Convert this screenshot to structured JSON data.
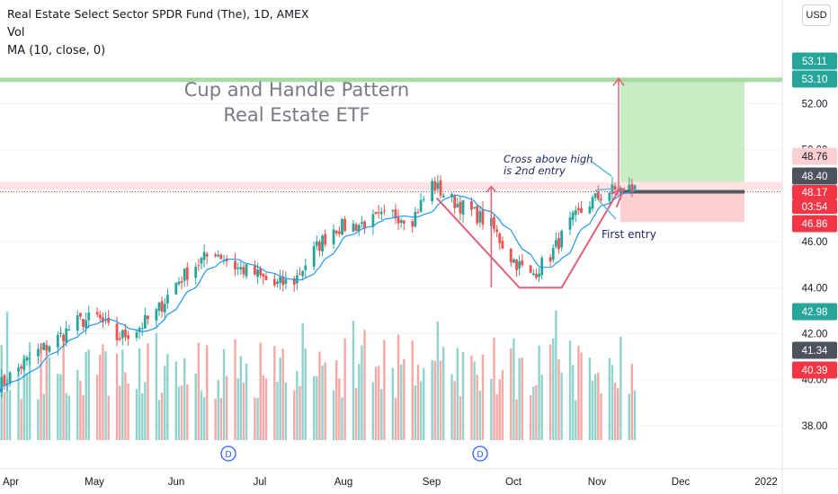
{
  "header": {
    "title": "Real Estate Select Sector SPDR Fund (The), 1D, AMEX",
    "vol_label": "Vol",
    "ma_label": "MA (10, close, 0)",
    "currency_button": "USD"
  },
  "annotations": {
    "title_line1": "Cup and Handle Pattern",
    "title_line2": "Real Estate ETF",
    "cross_line1": "Cross above high",
    "cross_line2": "is 2nd entry",
    "first_entry": "First entry"
  },
  "colors": {
    "up": "#26a69a",
    "down": "#ef5350",
    "up_volume": "#8fd3cc",
    "down_volume": "#f5a8a6",
    "ma": "#2196f3",
    "target_zone": "#c8ecc4",
    "stop_zone": "#fcd0d0",
    "pattern": "#e0607a",
    "label_green": "#26a69a",
    "label_red": "#f23645",
    "label_dark": "#4c525e"
  },
  "chart_data": {
    "type": "candlestick",
    "title": "Real Estate Select Sector SPDR Fund (The), 1D, AMEX",
    "y_axis": {
      "ticks": [
        "52.00",
        "50.00",
        "46.00",
        "44.00",
        "42.00",
        "40.00",
        "38.00"
      ],
      "ylim": [
        36.3,
        54.2
      ]
    },
    "x_axis": {
      "ticks": [
        "Apr",
        "May",
        "Jun",
        "Jul",
        "Aug",
        "Sep",
        "Oct",
        "Nov",
        "Dec",
        "2022"
      ]
    },
    "price_labels": [
      {
        "text": "53.11",
        "kind": "target"
      },
      {
        "text": "53.10",
        "kind": "target"
      },
      {
        "text": "48.76",
        "kind": "stop"
      },
      {
        "text": "48.40",
        "kind": "level"
      },
      {
        "text": "48.17",
        "kind": "last"
      },
      {
        "text": "03:54",
        "kind": "countdown"
      },
      {
        "text": "46.86",
        "kind": "last"
      },
      {
        "text": "42.98",
        "kind": "target"
      },
      {
        "text": "41.34",
        "kind": "level"
      },
      {
        "text": "40.39",
        "kind": "last"
      }
    ],
    "close_anchors": [
      [
        "2021-03-29",
        39.7
      ],
      [
        "2021-04-05",
        40.5
      ],
      [
        "2021-04-12",
        41.2
      ],
      [
        "2021-04-19",
        41.8
      ],
      [
        "2021-04-26",
        42.5
      ],
      [
        "2021-05-03",
        42.7
      ],
      [
        "2021-05-10",
        41.8
      ],
      [
        "2021-05-17",
        42.2
      ],
      [
        "2021-05-24",
        42.9
      ],
      [
        "2021-05-31",
        44.2
      ],
      [
        "2021-06-07",
        45.0
      ],
      [
        "2021-06-14",
        45.6
      ],
      [
        "2021-06-21",
        44.9
      ],
      [
        "2021-06-28",
        44.6
      ],
      [
        "2021-07-05",
        44.1
      ],
      [
        "2021-07-12",
        44.3
      ],
      [
        "2021-07-19",
        45.6
      ],
      [
        "2021-07-26",
        46.6
      ],
      [
        "2021-08-02",
        46.7
      ],
      [
        "2021-08-09",
        46.9
      ],
      [
        "2021-08-16",
        47.2
      ],
      [
        "2021-08-23",
        47.0
      ],
      [
        "2021-08-30",
        48.5
      ],
      [
        "2021-09-06",
        47.8
      ],
      [
        "2021-09-13",
        47.3
      ],
      [
        "2021-09-20",
        46.7
      ],
      [
        "2021-09-27",
        45.3
      ],
      [
        "2021-10-04",
        44.5
      ],
      [
        "2021-10-11",
        45.4
      ],
      [
        "2021-10-18",
        46.8
      ],
      [
        "2021-10-25",
        47.7
      ],
      [
        "2021-11-01",
        48.2
      ],
      [
        "2021-11-08",
        48.3
      ]
    ],
    "pattern_levels": {
      "cup_rim": 48.4,
      "cup_bottom": 44.0,
      "entry": 48.17,
      "target": 53.1,
      "stop": 46.86
    },
    "volume_series": "daily volume bars, teal on up days and red on down days"
  }
}
